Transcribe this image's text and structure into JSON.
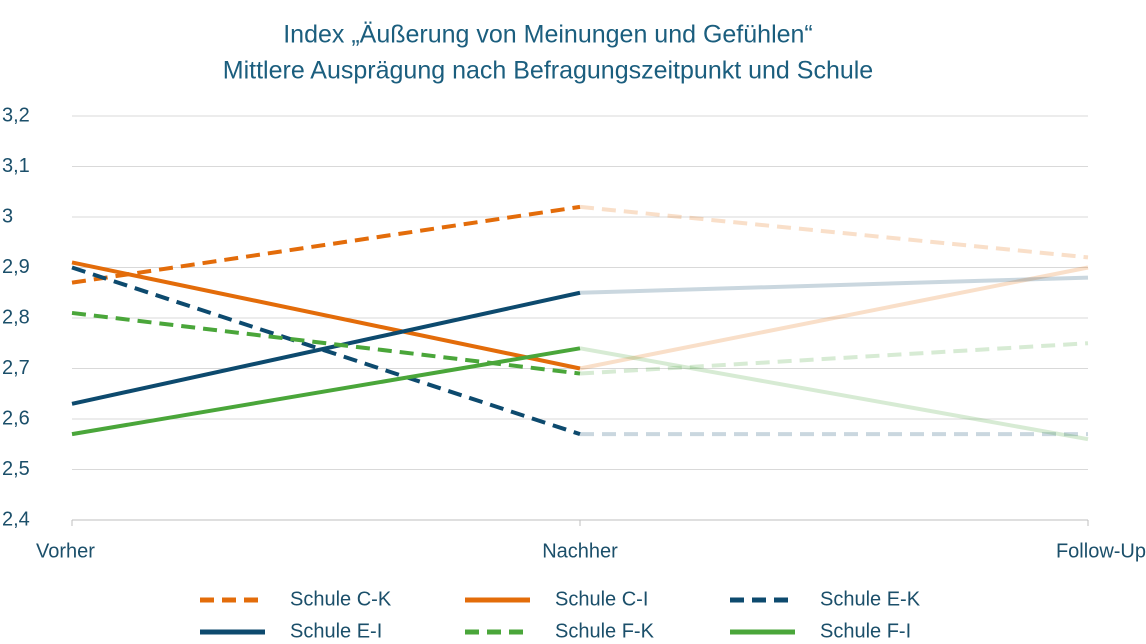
{
  "chart_data": {
    "type": "line",
    "title": "Index „Äußerung von Meinungen und Gefühlen“",
    "subtitle": "Mittlere Ausprägung nach Befragungszeitpunkt und Schule",
    "categories": [
      "Vorher",
      "Nachher",
      "Follow-Up"
    ],
    "ylim": [
      2.4,
      3.2
    ],
    "yticks": [
      {
        "value": 2.4,
        "label": "2,4"
      },
      {
        "value": 2.5,
        "label": "2,5"
      },
      {
        "value": 2.6,
        "label": "2,6"
      },
      {
        "value": 2.7,
        "label": "2,7"
      },
      {
        "value": 2.8,
        "label": "2,8"
      },
      {
        "value": 2.9,
        "label": "2,9"
      },
      3,
      {
        "value": 3.1,
        "label": "3,1"
      },
      {
        "value": 3.2,
        "label": "3,2"
      }
    ],
    "grid": true,
    "legend": "bottom",
    "faded_segment_start": 1,
    "series": [
      {
        "name": "Schule C-K",
        "color": "#e36c0a",
        "dashed": true,
        "values": [
          2.87,
          3.02,
          2.92
        ]
      },
      {
        "name": "Schule C-I",
        "color": "#e36c0a",
        "dashed": false,
        "values": [
          2.91,
          2.7,
          2.9
        ]
      },
      {
        "name": "Schule E-K",
        "color": "#0d4a6e",
        "dashed": true,
        "values": [
          2.9,
          2.57,
          2.57
        ]
      },
      {
        "name": "Schule E-I",
        "color": "#0d4a6e",
        "dashed": false,
        "values": [
          2.63,
          2.85,
          2.88
        ]
      },
      {
        "name": "Schule F-K",
        "color": "#4aa63a",
        "dashed": true,
        "values": [
          2.81,
          2.69,
          2.75
        ]
      },
      {
        "name": "Schule F-I",
        "color": "#4aa63a",
        "dashed": false,
        "values": [
          2.57,
          2.74,
          2.56
        ]
      }
    ]
  }
}
